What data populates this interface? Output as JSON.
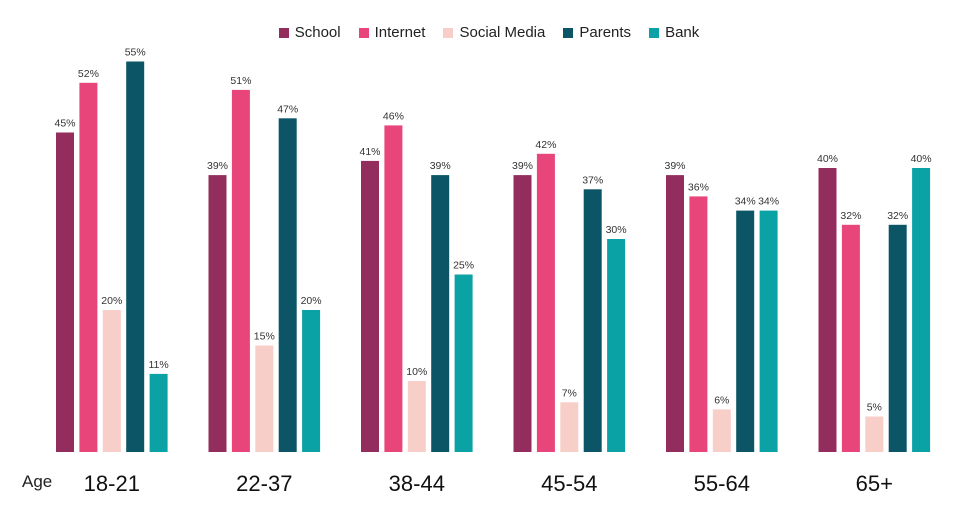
{
  "chart_data": {
    "type": "bar",
    "xlabel": "Age",
    "categories": [
      "18-21",
      "22-37",
      "38-44",
      "45-54",
      "55-64",
      "65+"
    ],
    "series": [
      {
        "name": "School",
        "color": "#932D5E",
        "values": [
          45,
          39,
          41,
          39,
          39,
          40
        ]
      },
      {
        "name": "Internet",
        "color": "#E8457A",
        "values": [
          52,
          51,
          46,
          42,
          36,
          32
        ]
      },
      {
        "name": "Social Media",
        "color": "#F7CEC8",
        "values": [
          20,
          15,
          10,
          7,
          6,
          5
        ]
      },
      {
        "name": "Parents",
        "color": "#0B5566",
        "values": [
          55,
          47,
          39,
          37,
          34,
          32
        ]
      },
      {
        "name": "Bank",
        "color": "#0BA2A6",
        "values": [
          11,
          20,
          25,
          30,
          34,
          40
        ]
      }
    ],
    "value_suffix": "%",
    "ylim": [
      0,
      55
    ],
    "legend_position": "top-center",
    "grid": false
  }
}
